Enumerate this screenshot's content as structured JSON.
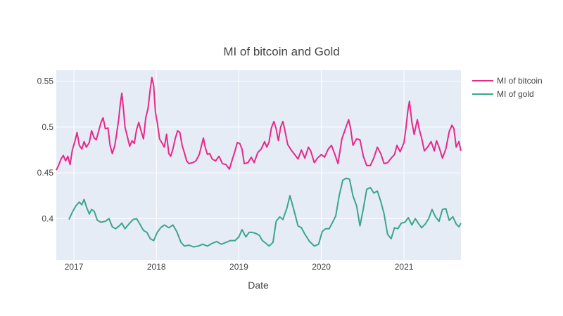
{
  "chart_data": {
    "type": "line",
    "title": "MI of bitcoin and Gold",
    "xlabel": "Date",
    "ylabel": "",
    "xlim": [
      "2016-10-15",
      "2021-09-10"
    ],
    "ylim": [
      0.355,
      0.562
    ],
    "x_ticks": [
      {
        "label": "2017",
        "date": "2017-01-01"
      },
      {
        "label": "2018",
        "date": "2018-01-01"
      },
      {
        "label": "2019",
        "date": "2019-01-01"
      },
      {
        "label": "2020",
        "date": "2020-01-01"
      },
      {
        "label": "2021",
        "date": "2021-01-01"
      }
    ],
    "y_ticks": [
      {
        "label": "0.4",
        "value": 0.4
      },
      {
        "label": "0.45",
        "value": 0.45
      },
      {
        "label": "0.5",
        "value": 0.5
      },
      {
        "label": "0.55",
        "value": 0.55
      }
    ],
    "grid": true,
    "legend_position": "top-right",
    "colors": {
      "plot_bg": "#E5ECF6",
      "grid": "#ffffff"
    },
    "series": [
      {
        "name": "MI of bitcoin",
        "color": "#E7298A",
        "points": [
          [
            "2016-10-15",
            0.453
          ],
          [
            "2016-10-25",
            0.458
          ],
          [
            "2016-11-05",
            0.465
          ],
          [
            "2016-11-15",
            0.469
          ],
          [
            "2016-11-25",
            0.463
          ],
          [
            "2016-12-05",
            0.468
          ],
          [
            "2016-12-15",
            0.459
          ],
          [
            "2016-12-25",
            0.475
          ],
          [
            "2017-01-05",
            0.484
          ],
          [
            "2017-01-15",
            0.494
          ],
          [
            "2017-01-25",
            0.48
          ],
          [
            "2017-02-05",
            0.476
          ],
          [
            "2017-02-15",
            0.484
          ],
          [
            "2017-02-25",
            0.478
          ],
          [
            "2017-03-10",
            0.483
          ],
          [
            "2017-03-20",
            0.496
          ],
          [
            "2017-04-01",
            0.488
          ],
          [
            "2017-04-10",
            0.486
          ],
          [
            "2017-04-20",
            0.495
          ],
          [
            "2017-05-01",
            0.505
          ],
          [
            "2017-05-10",
            0.51
          ],
          [
            "2017-05-20",
            0.498
          ],
          [
            "2017-06-01",
            0.499
          ],
          [
            "2017-06-10",
            0.48
          ],
          [
            "2017-06-20",
            0.471
          ],
          [
            "2017-07-01",
            0.48
          ],
          [
            "2017-07-10",
            0.494
          ],
          [
            "2017-07-18",
            0.508
          ],
          [
            "2017-07-25",
            0.525
          ],
          [
            "2017-08-01",
            0.537
          ],
          [
            "2017-08-08",
            0.52
          ],
          [
            "2017-08-15",
            0.5
          ],
          [
            "2017-08-25",
            0.49
          ],
          [
            "2017-09-05",
            0.479
          ],
          [
            "2017-09-15",
            0.485
          ],
          [
            "2017-09-25",
            0.482
          ],
          [
            "2017-10-05",
            0.497
          ],
          [
            "2017-10-15",
            0.505
          ],
          [
            "2017-10-25",
            0.496
          ],
          [
            "2017-11-05",
            0.487
          ],
          [
            "2017-11-15",
            0.51
          ],
          [
            "2017-11-25",
            0.52
          ],
          [
            "2017-12-05",
            0.542
          ],
          [
            "2017-12-12",
            0.554
          ],
          [
            "2017-12-20",
            0.545
          ],
          [
            "2017-12-28",
            0.516
          ],
          [
            "2018-01-05",
            0.505
          ],
          [
            "2018-01-15",
            0.487
          ],
          [
            "2018-01-25",
            0.483
          ],
          [
            "2018-02-05",
            0.478
          ],
          [
            "2018-02-15",
            0.492
          ],
          [
            "2018-02-25",
            0.471
          ],
          [
            "2018-03-05",
            0.468
          ],
          [
            "2018-03-15",
            0.476
          ],
          [
            "2018-03-25",
            0.487
          ],
          [
            "2018-04-05",
            0.496
          ],
          [
            "2018-04-15",
            0.494
          ],
          [
            "2018-04-25",
            0.48
          ],
          [
            "2018-05-05",
            0.472
          ],
          [
            "2018-05-15",
            0.463
          ],
          [
            "2018-05-25",
            0.46
          ],
          [
            "2018-06-10",
            0.461
          ],
          [
            "2018-06-25",
            0.463
          ],
          [
            "2018-07-10",
            0.47
          ],
          [
            "2018-07-20",
            0.48
          ],
          [
            "2018-07-28",
            0.488
          ],
          [
            "2018-08-05",
            0.478
          ],
          [
            "2018-08-15",
            0.47
          ],
          [
            "2018-08-25",
            0.471
          ],
          [
            "2018-09-05",
            0.465
          ],
          [
            "2018-09-20",
            0.463
          ],
          [
            "2018-10-05",
            0.468
          ],
          [
            "2018-10-20",
            0.46
          ],
          [
            "2018-11-05",
            0.459
          ],
          [
            "2018-11-20",
            0.454
          ],
          [
            "2018-12-05",
            0.466
          ],
          [
            "2018-12-15",
            0.474
          ],
          [
            "2018-12-25",
            0.483
          ],
          [
            "2019-01-05",
            0.482
          ],
          [
            "2019-01-15",
            0.476
          ],
          [
            "2019-01-25",
            0.46
          ],
          [
            "2019-02-10",
            0.461
          ],
          [
            "2019-02-25",
            0.467
          ],
          [
            "2019-03-10",
            0.461
          ],
          [
            "2019-03-25",
            0.472
          ],
          [
            "2019-04-10",
            0.476
          ],
          [
            "2019-04-25",
            0.484
          ],
          [
            "2019-05-05",
            0.478
          ],
          [
            "2019-05-15",
            0.484
          ],
          [
            "2019-05-25",
            0.499
          ],
          [
            "2019-06-05",
            0.506
          ],
          [
            "2019-06-15",
            0.498
          ],
          [
            "2019-06-25",
            0.485
          ],
          [
            "2019-07-05",
            0.5
          ],
          [
            "2019-07-15",
            0.506
          ],
          [
            "2019-07-25",
            0.495
          ],
          [
            "2019-08-05",
            0.481
          ],
          [
            "2019-08-20",
            0.475
          ],
          [
            "2019-09-05",
            0.47
          ],
          [
            "2019-09-20",
            0.465
          ],
          [
            "2019-10-05",
            0.475
          ],
          [
            "2019-10-20",
            0.466
          ],
          [
            "2019-11-05",
            0.478
          ],
          [
            "2019-11-15",
            0.474
          ],
          [
            "2019-12-01",
            0.461
          ],
          [
            "2019-12-15",
            0.466
          ],
          [
            "2020-01-01",
            0.47
          ],
          [
            "2020-01-15",
            0.467
          ],
          [
            "2020-02-01",
            0.476
          ],
          [
            "2020-02-15",
            0.48
          ],
          [
            "2020-03-01",
            0.47
          ],
          [
            "2020-03-15",
            0.46
          ],
          [
            "2020-04-01",
            0.487
          ],
          [
            "2020-04-15",
            0.497
          ],
          [
            "2020-05-01",
            0.508
          ],
          [
            "2020-05-10",
            0.498
          ],
          [
            "2020-05-20",
            0.48
          ],
          [
            "2020-06-05",
            0.487
          ],
          [
            "2020-06-20",
            0.486
          ],
          [
            "2020-07-05",
            0.468
          ],
          [
            "2020-07-20",
            0.458
          ],
          [
            "2020-08-05",
            0.458
          ],
          [
            "2020-08-20",
            0.466
          ],
          [
            "2020-09-05",
            0.478
          ],
          [
            "2020-09-20",
            0.471
          ],
          [
            "2020-10-05",
            0.46
          ],
          [
            "2020-10-20",
            0.461
          ],
          [
            "2020-11-05",
            0.466
          ],
          [
            "2020-11-20",
            0.47
          ],
          [
            "2020-12-01",
            0.48
          ],
          [
            "2020-12-15",
            0.473
          ],
          [
            "2021-01-01",
            0.483
          ],
          [
            "2021-01-10",
            0.5
          ],
          [
            "2021-01-18",
            0.518
          ],
          [
            "2021-01-25",
            0.528
          ],
          [
            "2021-02-05",
            0.505
          ],
          [
            "2021-02-15",
            0.492
          ],
          [
            "2021-03-01",
            0.508
          ],
          [
            "2021-03-10",
            0.497
          ],
          [
            "2021-03-20",
            0.488
          ],
          [
            "2021-04-01",
            0.474
          ],
          [
            "2021-04-15",
            0.478
          ],
          [
            "2021-05-01",
            0.484
          ],
          [
            "2021-05-15",
            0.474
          ],
          [
            "2021-05-25",
            0.485
          ],
          [
            "2021-06-05",
            0.478
          ],
          [
            "2021-06-20",
            0.466
          ],
          [
            "2021-07-05",
            0.476
          ],
          [
            "2021-07-20",
            0.495
          ],
          [
            "2021-08-01",
            0.502
          ],
          [
            "2021-08-10",
            0.498
          ],
          [
            "2021-08-20",
            0.478
          ],
          [
            "2021-09-01",
            0.484
          ],
          [
            "2021-09-10",
            0.474
          ]
        ]
      },
      {
        "name": "MI of gold",
        "color": "#3DA58A",
        "points": [
          [
            "2016-12-10",
            0.399
          ],
          [
            "2016-12-25",
            0.407
          ],
          [
            "2017-01-10",
            0.414
          ],
          [
            "2017-01-25",
            0.418
          ],
          [
            "2017-02-05",
            0.415
          ],
          [
            "2017-02-15",
            0.421
          ],
          [
            "2017-02-25",
            0.413
          ],
          [
            "2017-03-10",
            0.405
          ],
          [
            "2017-03-20",
            0.41
          ],
          [
            "2017-04-01",
            0.408
          ],
          [
            "2017-04-15",
            0.398
          ],
          [
            "2017-05-01",
            0.396
          ],
          [
            "2017-05-20",
            0.397
          ],
          [
            "2017-06-05",
            0.4
          ],
          [
            "2017-06-20",
            0.391
          ],
          [
            "2017-07-05",
            0.389
          ],
          [
            "2017-07-20",
            0.392
          ],
          [
            "2017-08-01",
            0.395
          ],
          [
            "2017-08-15",
            0.389
          ],
          [
            "2017-09-01",
            0.394
          ],
          [
            "2017-09-20",
            0.399
          ],
          [
            "2017-10-05",
            0.4
          ],
          [
            "2017-10-20",
            0.394
          ],
          [
            "2017-11-05",
            0.387
          ],
          [
            "2017-11-20",
            0.385
          ],
          [
            "2017-12-05",
            0.378
          ],
          [
            "2017-12-20",
            0.376
          ],
          [
            "2018-01-05",
            0.385
          ],
          [
            "2018-01-20",
            0.39
          ],
          [
            "2018-02-05",
            0.393
          ],
          [
            "2018-02-25",
            0.39
          ],
          [
            "2018-03-15",
            0.393
          ],
          [
            "2018-04-01",
            0.386
          ],
          [
            "2018-04-20",
            0.374
          ],
          [
            "2018-05-05",
            0.37
          ],
          [
            "2018-05-25",
            0.371
          ],
          [
            "2018-06-15",
            0.369
          ],
          [
            "2018-07-05",
            0.37
          ],
          [
            "2018-07-25",
            0.372
          ],
          [
            "2018-08-15",
            0.37
          ],
          [
            "2018-09-05",
            0.373
          ],
          [
            "2018-09-25",
            0.375
          ],
          [
            "2018-10-15",
            0.372
          ],
          [
            "2018-11-05",
            0.374
          ],
          [
            "2018-11-25",
            0.376
          ],
          [
            "2018-12-15",
            0.376
          ],
          [
            "2019-01-01",
            0.38
          ],
          [
            "2019-01-15",
            0.388
          ],
          [
            "2019-02-01",
            0.38
          ],
          [
            "2019-02-15",
            0.385
          ],
          [
            "2019-03-01",
            0.385
          ],
          [
            "2019-03-15",
            0.384
          ],
          [
            "2019-04-01",
            0.382
          ],
          [
            "2019-04-15",
            0.376
          ],
          [
            "2019-05-01",
            0.373
          ],
          [
            "2019-05-15",
            0.37
          ],
          [
            "2019-06-01",
            0.374
          ],
          [
            "2019-06-15",
            0.397
          ],
          [
            "2019-07-01",
            0.402
          ],
          [
            "2019-07-15",
            0.399
          ],
          [
            "2019-08-01",
            0.411
          ],
          [
            "2019-08-15",
            0.425
          ],
          [
            "2019-09-01",
            0.41
          ],
          [
            "2019-09-20",
            0.392
          ],
          [
            "2019-10-05",
            0.39
          ],
          [
            "2019-10-20",
            0.383
          ],
          [
            "2019-11-10",
            0.375
          ],
          [
            "2019-12-01",
            0.37
          ],
          [
            "2019-12-20",
            0.372
          ],
          [
            "2020-01-05",
            0.386
          ],
          [
            "2020-01-20",
            0.389
          ],
          [
            "2020-02-05",
            0.389
          ],
          [
            "2020-02-20",
            0.396
          ],
          [
            "2020-03-05",
            0.403
          ],
          [
            "2020-03-20",
            0.425
          ],
          [
            "2020-04-05",
            0.442
          ],
          [
            "2020-04-20",
            0.444
          ],
          [
            "2020-05-05",
            0.443
          ],
          [
            "2020-05-20",
            0.425
          ],
          [
            "2020-06-05",
            0.414
          ],
          [
            "2020-06-20",
            0.392
          ],
          [
            "2020-07-05",
            0.411
          ],
          [
            "2020-07-20",
            0.432
          ],
          [
            "2020-08-05",
            0.434
          ],
          [
            "2020-08-20",
            0.428
          ],
          [
            "2020-09-05",
            0.43
          ],
          [
            "2020-09-20",
            0.419
          ],
          [
            "2020-10-05",
            0.405
          ],
          [
            "2020-10-20",
            0.383
          ],
          [
            "2020-11-05",
            0.378
          ],
          [
            "2020-11-20",
            0.39
          ],
          [
            "2020-12-05",
            0.389
          ],
          [
            "2020-12-20",
            0.395
          ],
          [
            "2021-01-05",
            0.396
          ],
          [
            "2021-01-20",
            0.401
          ],
          [
            "2021-02-05",
            0.393
          ],
          [
            "2021-02-20",
            0.4
          ],
          [
            "2021-03-05",
            0.395
          ],
          [
            "2021-03-20",
            0.39
          ],
          [
            "2021-04-05",
            0.394
          ],
          [
            "2021-04-20",
            0.4
          ],
          [
            "2021-05-05",
            0.41
          ],
          [
            "2021-05-20",
            0.402
          ],
          [
            "2021-06-05",
            0.397
          ],
          [
            "2021-06-20",
            0.41
          ],
          [
            "2021-07-05",
            0.411
          ],
          [
            "2021-07-20",
            0.398
          ],
          [
            "2021-08-05",
            0.402
          ],
          [
            "2021-08-20",
            0.394
          ],
          [
            "2021-09-01",
            0.391
          ],
          [
            "2021-09-10",
            0.395
          ]
        ]
      }
    ]
  }
}
